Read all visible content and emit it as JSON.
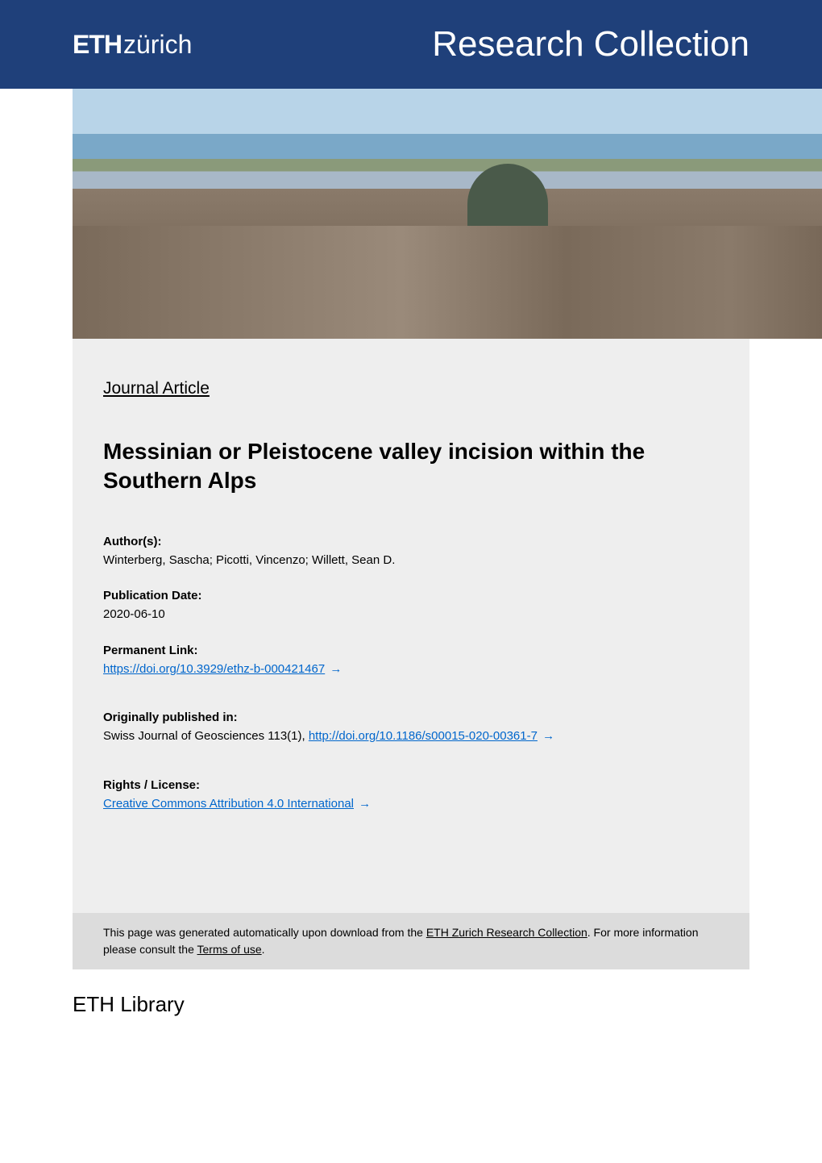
{
  "header": {
    "logo_eth": "ETH",
    "logo_zurich": "zürich",
    "collection_title": "Research Collection"
  },
  "content": {
    "article_type": "Journal Article",
    "title": "Messinian or Pleistocene valley incision within the Southern Alps",
    "authors_label": "Author(s):",
    "authors": "Winterberg, Sascha; Picotti, Vincenzo; Willett, Sean D.",
    "pubdate_label": "Publication Date:",
    "pubdate": "2020-06-10",
    "permalink_label": "Permanent Link:",
    "permalink": "https://doi.org/10.3929/ethz-b-000421467",
    "orig_label": "Originally published in:",
    "orig_text_prefix": "Swiss Journal of Geosciences 113(1), ",
    "orig_link": "http://doi.org/10.1186/s00015-020-00361-7",
    "rights_label": "Rights / License:",
    "rights_link": "Creative Commons Attribution 4.0 International"
  },
  "footer": {
    "note_prefix": "This page was generated automatically upon download from the ",
    "note_link1": "ETH Zurich Research Collection",
    "note_mid": ". For more information please consult the ",
    "note_link2": "Terms of use",
    "note_suffix": ".",
    "library": "ETH Library"
  },
  "colors": {
    "header_bg": "#1f407a",
    "content_bg": "#eeeeee",
    "footer_note_bg": "#dcdcdc",
    "link_color": "#0066cc",
    "text_color": "#000000"
  }
}
